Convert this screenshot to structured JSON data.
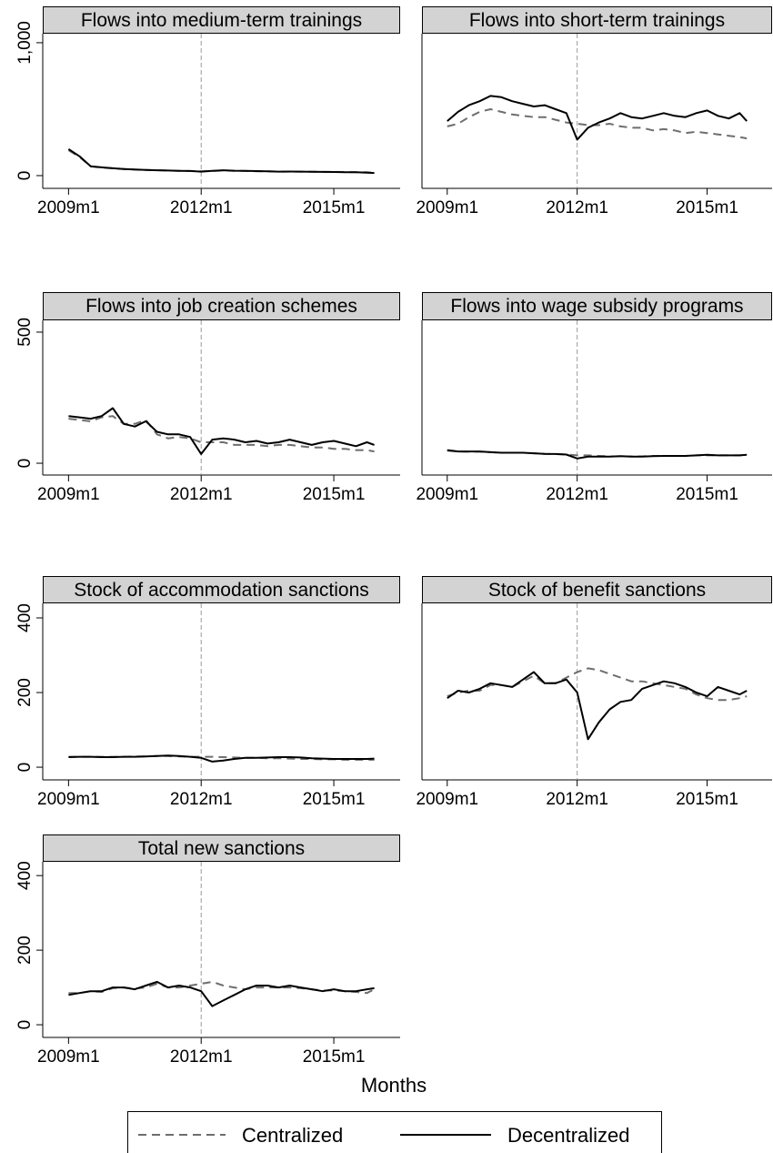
{
  "xlabel": "Months",
  "chart_data": [
    {
      "type": "line",
      "title": "Flows into medium-term trainings",
      "x": [
        588,
        591,
        594,
        597,
        600,
        603,
        606,
        609,
        612,
        615,
        618,
        621,
        624,
        627,
        630,
        633,
        636,
        639,
        642,
        645,
        648,
        651,
        654,
        657,
        660,
        663,
        666,
        669,
        671
      ],
      "xlim": [
        581,
        678
      ],
      "xticks": [
        {
          "value": 588,
          "label": "2009m1"
        },
        {
          "value": 624,
          "label": "2012m1"
        },
        {
          "value": 660,
          "label": "2015m1"
        }
      ],
      "ylim": [
        -96,
        1068
      ],
      "yticks": [
        0,
        {
          "value": 1000,
          "label": "1,000"
        }
      ],
      "vline": 624,
      "series": [
        {
          "name": "Centralized",
          "color": "#6e6e6e",
          "style": "dashed",
          "values": [
            190,
            140,
            70,
            60,
            55,
            50,
            45,
            42,
            40,
            38,
            36,
            35,
            33,
            35,
            38,
            36,
            35,
            33,
            32,
            30,
            30,
            30,
            29,
            28,
            28,
            27,
            26,
            25,
            22
          ]
        },
        {
          "name": "Decentralized",
          "color": "#000000",
          "style": "solid",
          "values": [
            200,
            145,
            70,
            62,
            55,
            50,
            46,
            42,
            40,
            38,
            36,
            35,
            30,
            36,
            40,
            37,
            36,
            34,
            32,
            30,
            31,
            30,
            29,
            28,
            27,
            26,
            25,
            22,
            20
          ]
        }
      ]
    },
    {
      "type": "line",
      "title": "Flows into short-term trainings",
      "x": [
        588,
        591,
        594,
        597,
        600,
        603,
        606,
        609,
        612,
        615,
        618,
        621,
        624,
        627,
        630,
        633,
        636,
        639,
        642,
        645,
        648,
        651,
        654,
        657,
        660,
        663,
        666,
        669,
        671
      ],
      "xlim": [
        581,
        678
      ],
      "xticks": [
        {
          "value": 588,
          "label": "2009m1"
        },
        {
          "value": 624,
          "label": "2012m1"
        },
        {
          "value": 660,
          "label": "2015m1"
        }
      ],
      "ylim": [
        -96,
        1068
      ],
      "vline": 624,
      "series": [
        {
          "name": "Centralized",
          "color": "#6e6e6e",
          "style": "dashed",
          "values": [
            370,
            390,
            440,
            480,
            500,
            480,
            460,
            450,
            440,
            440,
            420,
            400,
            390,
            380,
            380,
            390,
            370,
            360,
            360,
            340,
            350,
            340,
            320,
            330,
            320,
            310,
            300,
            290,
            280
          ]
        },
        {
          "name": "Decentralized",
          "color": "#000000",
          "style": "solid",
          "values": [
            410,
            480,
            530,
            560,
            600,
            590,
            560,
            540,
            520,
            530,
            500,
            470,
            270,
            360,
            400,
            430,
            470,
            440,
            430,
            450,
            470,
            450,
            440,
            470,
            490,
            450,
            430,
            470,
            410
          ]
        }
      ]
    },
    {
      "type": "line",
      "title": "Flows into job creation schemes",
      "x": [
        588,
        591,
        594,
        597,
        600,
        603,
        606,
        609,
        612,
        615,
        618,
        621,
        624,
        627,
        630,
        633,
        636,
        639,
        642,
        645,
        648,
        651,
        654,
        657,
        660,
        663,
        666,
        669,
        671
      ],
      "xlim": [
        581,
        678
      ],
      "xticks": [
        {
          "value": 588,
          "label": "2009m1"
        },
        {
          "value": 624,
          "label": "2012m1"
        },
        {
          "value": 660,
          "label": "2015m1"
        }
      ],
      "ylim": [
        -45,
        545
      ],
      "yticks": [
        0,
        500
      ],
      "vline": 624,
      "series": [
        {
          "name": "Centralized",
          "color": "#6e6e6e",
          "style": "dashed",
          "values": [
            170,
            165,
            160,
            175,
            180,
            150,
            150,
            165,
            110,
            95,
            100,
            95,
            80,
            80,
            80,
            70,
            70,
            70,
            65,
            70,
            70,
            65,
            60,
            60,
            55,
            55,
            50,
            50,
            45
          ]
        },
        {
          "name": "Decentralized",
          "color": "#000000",
          "style": "solid",
          "values": [
            180,
            175,
            170,
            180,
            210,
            150,
            140,
            160,
            120,
            110,
            110,
            100,
            35,
            90,
            95,
            90,
            80,
            85,
            75,
            80,
            90,
            80,
            70,
            80,
            85,
            75,
            65,
            80,
            70
          ]
        }
      ]
    },
    {
      "type": "line",
      "title": "Flows into wage subsidy programs",
      "x": [
        588,
        591,
        594,
        597,
        600,
        603,
        606,
        609,
        612,
        615,
        618,
        621,
        624,
        627,
        630,
        633,
        636,
        639,
        642,
        645,
        648,
        651,
        654,
        657,
        660,
        663,
        666,
        669,
        671
      ],
      "xlim": [
        581,
        678
      ],
      "xticks": [
        {
          "value": 588,
          "label": "2009m1"
        },
        {
          "value": 624,
          "label": "2012m1"
        },
        {
          "value": 660,
          "label": "2015m1"
        }
      ],
      "ylim": [
        -45,
        545
      ],
      "vline": 624,
      "series": [
        {
          "name": "Centralized",
          "color": "#6e6e6e",
          "style": "dashed",
          "values": [
            48,
            45,
            44,
            44,
            42,
            40,
            40,
            40,
            38,
            36,
            35,
            33,
            30,
            30,
            28,
            26,
            26,
            26,
            26,
            28,
            28,
            28,
            28,
            30,
            30,
            30,
            30,
            30,
            32
          ]
        },
        {
          "name": "Decentralized",
          "color": "#000000",
          "style": "solid",
          "values": [
            50,
            45,
            45,
            45,
            42,
            40,
            40,
            40,
            38,
            36,
            35,
            33,
            18,
            25,
            25,
            25,
            27,
            25,
            25,
            27,
            28,
            28,
            28,
            30,
            32,
            30,
            30,
            30,
            32
          ]
        }
      ]
    },
    {
      "type": "line",
      "title": "Stock of accommodation sanctions",
      "x": [
        588,
        591,
        594,
        597,
        600,
        603,
        606,
        609,
        612,
        615,
        618,
        621,
        624,
        627,
        630,
        633,
        636,
        639,
        642,
        645,
        648,
        651,
        654,
        657,
        660,
        663,
        666,
        669,
        671
      ],
      "xlim": [
        581,
        678
      ],
      "xticks": [
        {
          "value": 588,
          "label": "2009m1"
        },
        {
          "value": 624,
          "label": "2012m1"
        },
        {
          "value": 660,
          "label": "2015m1"
        }
      ],
      "ylim": [
        -34,
        439
      ],
      "yticks": [
        0,
        200,
        400
      ],
      "vline": 624,
      "series": [
        {
          "name": "Centralized",
          "color": "#6e6e6e",
          "style": "dashed",
          "values": [
            28,
            28,
            28,
            28,
            28,
            28,
            29,
            29,
            30,
            30,
            29,
            28,
            28,
            28,
            27,
            26,
            25,
            25,
            24,
            24,
            23,
            22,
            22,
            21,
            21,
            20,
            20,
            20,
            20
          ]
        },
        {
          "name": "Decentralized",
          "color": "#000000",
          "style": "solid",
          "values": [
            27,
            28,
            28,
            27,
            27,
            28,
            28,
            29,
            30,
            31,
            30,
            28,
            25,
            15,
            18,
            22,
            25,
            25,
            26,
            27,
            27,
            26,
            24,
            23,
            22,
            22,
            22,
            22,
            23
          ]
        }
      ]
    },
    {
      "type": "line",
      "title": "Stock of benefit sanctions",
      "x": [
        588,
        591,
        594,
        597,
        600,
        603,
        606,
        609,
        612,
        615,
        618,
        621,
        624,
        627,
        630,
        633,
        636,
        639,
        642,
        645,
        648,
        651,
        654,
        657,
        660,
        663,
        666,
        669,
        671
      ],
      "xlim": [
        581,
        678
      ],
      "xticks": [
        {
          "value": 588,
          "label": "2009m1"
        },
        {
          "value": 624,
          "label": "2012m1"
        },
        {
          "value": 660,
          "label": "2015m1"
        }
      ],
      "ylim": [
        -34,
        439
      ],
      "vline": 624,
      "series": [
        {
          "name": "Centralized",
          "color": "#6e6e6e",
          "style": "dashed",
          "values": [
            190,
            200,
            205,
            205,
            220,
            220,
            215,
            230,
            245,
            225,
            225,
            240,
            255,
            265,
            260,
            250,
            240,
            230,
            230,
            225,
            220,
            215,
            210,
            195,
            185,
            180,
            180,
            185,
            190
          ]
        },
        {
          "name": "Decentralized",
          "color": "#000000",
          "style": "solid",
          "values": [
            185,
            205,
            200,
            210,
            225,
            220,
            215,
            235,
            255,
            225,
            225,
            235,
            200,
            75,
            120,
            155,
            175,
            180,
            210,
            220,
            230,
            225,
            215,
            200,
            190,
            215,
            205,
            195,
            205
          ]
        }
      ]
    },
    {
      "type": "line",
      "title": "Total new sanctions",
      "x": [
        588,
        591,
        594,
        597,
        600,
        603,
        606,
        609,
        612,
        615,
        618,
        621,
        624,
        627,
        630,
        633,
        636,
        639,
        642,
        645,
        648,
        651,
        654,
        657,
        660,
        663,
        666,
        669,
        671
      ],
      "xlim": [
        581,
        678
      ],
      "xticks": [
        {
          "value": 588,
          "label": "2009m1"
        },
        {
          "value": 624,
          "label": "2012m1"
        },
        {
          "value": 660,
          "label": "2015m1"
        }
      ],
      "ylim": [
        -34,
        437
      ],
      "yticks": [
        0,
        200,
        400
      ],
      "vline": 624,
      "series": [
        {
          "name": "Centralized",
          "color": "#6e6e6e",
          "style": "dashed",
          "values": [
            85,
            85,
            90,
            88,
            98,
            100,
            97,
            100,
            110,
            100,
            100,
            105,
            110,
            115,
            105,
            100,
            95,
            100,
            100,
            100,
            100,
            98,
            95,
            92,
            92,
            90,
            88,
            85,
            95
          ]
        },
        {
          "name": "Decentralized",
          "color": "#000000",
          "style": "solid",
          "values": [
            80,
            85,
            90,
            90,
            100,
            100,
            95,
            105,
            115,
            100,
            105,
            100,
            90,
            50,
            65,
            80,
            95,
            105,
            105,
            100,
            105,
            100,
            95,
            90,
            95,
            90,
            90,
            95,
            98
          ]
        }
      ]
    }
  ]
}
